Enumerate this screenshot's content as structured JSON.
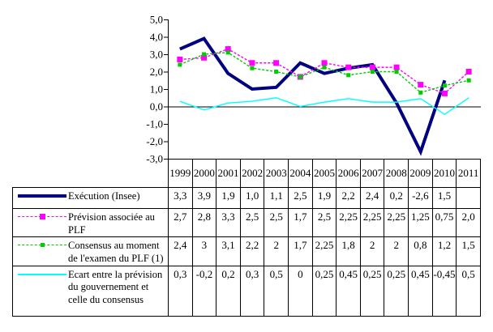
{
  "page": {
    "background": "#ffffff"
  },
  "chart": {
    "yticks": [
      "5,0",
      "4,0",
      "3,0",
      "2,0",
      "1,0",
      "0,0",
      "-1,0",
      "-2,0",
      "-3,0"
    ]
  },
  "chart_data": {
    "type": "line",
    "title": "",
    "xlabel": "",
    "ylabel": "",
    "categories": [
      "1999",
      "2000",
      "2001",
      "2002",
      "2003",
      "2004",
      "2005",
      "2006",
      "2007",
      "2008",
      "2009",
      "2010",
      "2011"
    ],
    "series": [
      {
        "name": "Exécution (Insee)",
        "color": "#000080",
        "style": "solid-thick",
        "values": [
          3.3,
          3.9,
          1.9,
          1.0,
          1.1,
          2.5,
          1.9,
          2.2,
          2.4,
          0.2,
          -2.6,
          1.5,
          null
        ]
      },
      {
        "name": "Prévision associée au PLF",
        "color": "#ff00ff",
        "style": "dashed-square",
        "values": [
          2.7,
          2.8,
          3.3,
          2.5,
          2.5,
          1.7,
          2.5,
          2.25,
          2.25,
          2.25,
          1.25,
          0.75,
          2.0
        ]
      },
      {
        "name": "Consensus au moment de l'examen du PLF (1)",
        "color": "#00cc00",
        "style": "dashed-square-small",
        "values": [
          2.4,
          3,
          3.1,
          2.2,
          2,
          1.7,
          2.25,
          1.8,
          2,
          2,
          0.8,
          1.2,
          1.5
        ]
      },
      {
        "name": "Ecart entre la prévision du gouvernement et celle du consensus",
        "color": "#00ffff",
        "style": "solid-thin",
        "values": [
          0.3,
          -0.2,
          0.2,
          0.3,
          0.5,
          0,
          0.25,
          0.45,
          0.25,
          0.25,
          0.45,
          -0.45,
          0.5
        ]
      }
    ],
    "ylim": [
      -3,
      5
    ],
    "ytick_step": 1,
    "grid": false,
    "zero_line": true,
    "legend_position": "table-left-column"
  },
  "table": {
    "year_header": [
      "1999",
      "2000",
      "2001",
      "2002",
      "2003",
      "2004",
      "2005",
      "2006",
      "2007",
      "2008",
      "2009",
      "2010",
      "2011"
    ],
    "rows": [
      {
        "label": "Exécution (Insee)",
        "swatch": "navy-thick-line",
        "values": [
          "3,3",
          "3,9",
          "1,9",
          "1,0",
          "1,1",
          "2,5",
          "1,9",
          "2,2",
          "2,4",
          "0,2",
          "-2,6",
          "1,5",
          ""
        ]
      },
      {
        "label": "Prévision associée au PLF",
        "swatch": "magenta-dashed-square",
        "values": [
          "2,7",
          "2,8",
          "3,3",
          "2,5",
          "2,5",
          "1,7",
          "2,5",
          "2,25",
          "2,25",
          "2,25",
          "1,25",
          "0,75",
          "2,0"
        ]
      },
      {
        "label": "Consensus au moment de l'examen du PLF (1)",
        "swatch": "green-dashed-square",
        "values": [
          "2,4",
          "3",
          "3,1",
          "2,2",
          "2",
          "1,7",
          "2,25",
          "1,8",
          "2",
          "2",
          "0,8",
          "1,2",
          "1,5"
        ]
      },
      {
        "label": "Ecart entre la prévision du gouvernement et celle du consensus",
        "swatch": "cyan-thin-line",
        "values": [
          "0,3",
          "-0,2",
          "0,2",
          "0,3",
          "0,5",
          "0",
          "0,25",
          "0,45",
          "0,25",
          "0,25",
          "0,45",
          "-0,45",
          "0,5"
        ]
      }
    ]
  }
}
